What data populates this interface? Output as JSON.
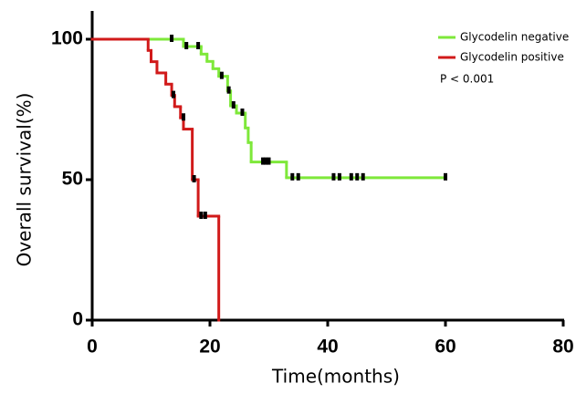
{
  "chart_data": {
    "type": "step",
    "y_label": "Overall survival(%)",
    "x_label": "Time(months)",
    "annotation": "P < 0.001",
    "xlim": [
      0,
      80
    ],
    "xticks": [
      0,
      20,
      40,
      60,
      80
    ],
    "ylim": [
      0,
      100
    ],
    "yticks": [
      0,
      50,
      100
    ],
    "grid": false,
    "legend": "top-right",
    "series": [
      {
        "name": "Glycodelin negative",
        "color": "#7ee83a",
        "x": [
          0,
          15.5,
          18.5,
          19.5,
          20.5,
          21.5,
          23,
          23.5,
          24.5,
          26,
          26.5,
          27,
          33,
          60
        ],
        "values": [
          100,
          97.4,
          94.7,
          92.1,
          89.5,
          86.8,
          81.6,
          76.3,
          73.7,
          68.4,
          63.2,
          56.3,
          50.7,
          50.7
        ],
        "censor_x": [
          13.5,
          16,
          18,
          22,
          23.2,
          24,
          25.5,
          29,
          29.5,
          30,
          34,
          35,
          41,
          42,
          44,
          45,
          46,
          60
        ],
        "censor_y": [
          100,
          97.4,
          97.4,
          86.8,
          81.6,
          76.3,
          73.7,
          56.3,
          56.3,
          56.3,
          50.7,
          50.7,
          50.7,
          50.7,
          50.7,
          50.7,
          50.7,
          50.7
        ]
      },
      {
        "name": "Glycodelin positive",
        "color": "#d11a1a",
        "x": [
          0,
          9.5,
          10,
          11,
          12.5,
          13.5,
          14,
          15,
          15.5,
          17,
          18,
          21.5
        ],
        "values": [
          100,
          96,
          92,
          88,
          84,
          80,
          76,
          72,
          68,
          50,
          37,
          0
        ],
        "censor_x": [
          13.8,
          15.5,
          17.3,
          18.5,
          19.2
        ],
        "censor_y": [
          80,
          72,
          50,
          37,
          37
        ]
      }
    ]
  }
}
